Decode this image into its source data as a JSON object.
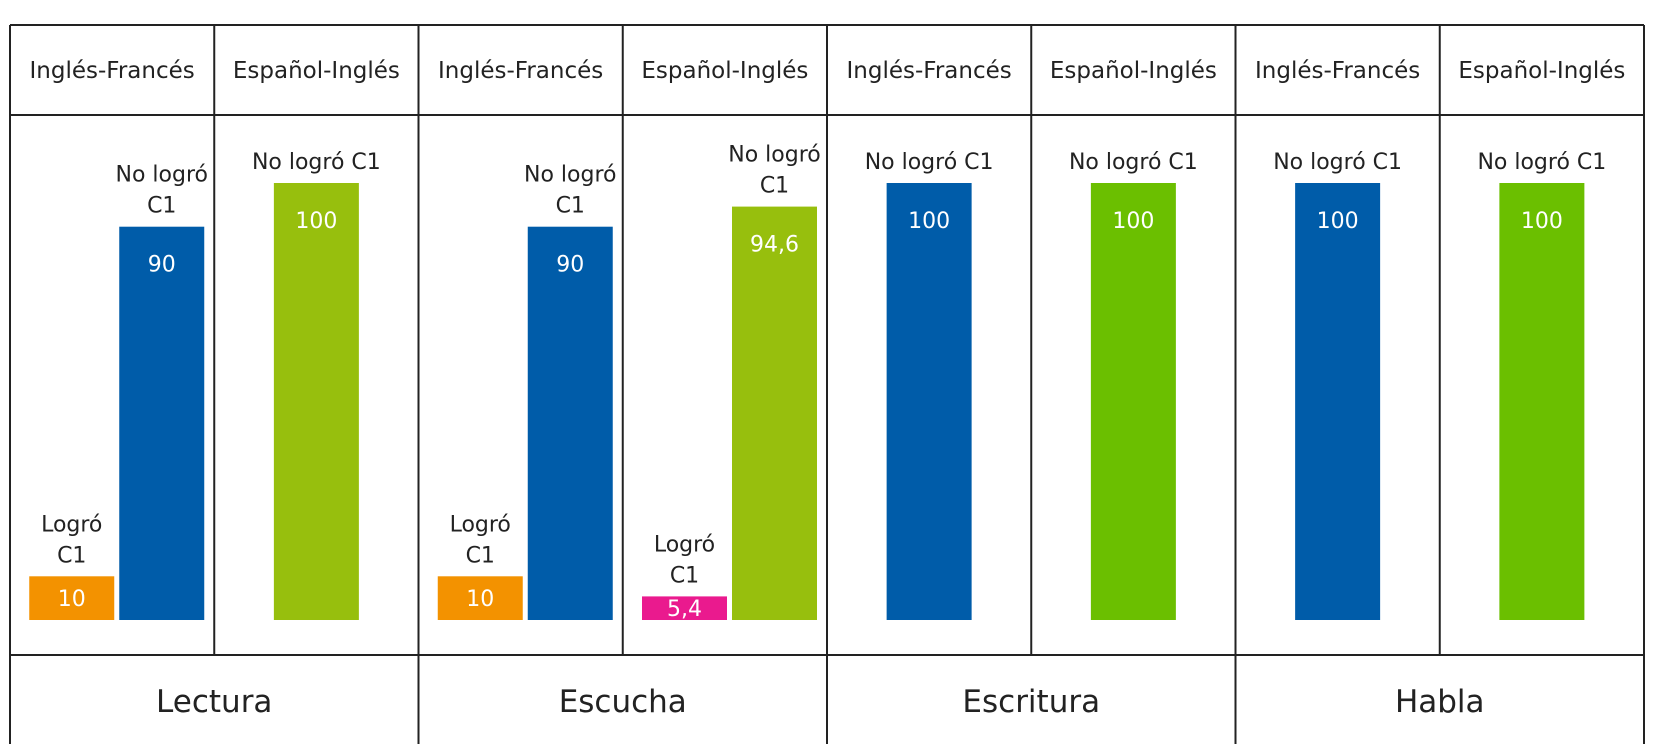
{
  "chart_data": {
    "type": "bar",
    "colors": {
      "Logró C1": "#f39200",
      "No logró C1": "#005ca9",
      "Logró C1 (Español-Inglés)": "#ea1a8e",
      "No logró C1 (Español-Inglés)": "#97bf0d",
      "No logró C1 (Español-Inglés, alt)": "#6bbf00"
    },
    "ylim": [
      0,
      100
    ],
    "panels": [
      {
        "skill": "Lectura",
        "groups": [
          {
            "name": "Inglés-Francés",
            "bars": [
              {
                "label": "Logró C1",
                "value_text": "10",
                "value": 10,
                "color": "#f39200"
              },
              {
                "label": "No logró C1",
                "value_text": "90",
                "value": 90,
                "color": "#005ca9"
              }
            ]
          },
          {
            "name": "Español-Inglés",
            "bars": [
              {
                "label": "No logró C1",
                "value_text": "100",
                "value": 100,
                "color": "#97bf0d"
              }
            ]
          }
        ]
      },
      {
        "skill": "Escucha",
        "groups": [
          {
            "name": "Inglés-Francés",
            "bars": [
              {
                "label": "Logró C1",
                "value_text": "10",
                "value": 10,
                "color": "#f39200"
              },
              {
                "label": "No logró C1",
                "value_text": "90",
                "value": 90,
                "color": "#005ca9"
              }
            ]
          },
          {
            "name": "Español-Inglés",
            "bars": [
              {
                "label": "Logró C1",
                "value_text": "5,4",
                "value": 5.4,
                "color": "#ea1a8e"
              },
              {
                "label": "No logró C1",
                "value_text": "94,6",
                "value": 94.6,
                "color": "#97bf0d"
              }
            ]
          }
        ]
      },
      {
        "skill": "Escritura",
        "groups": [
          {
            "name": "Inglés-Francés",
            "bars": [
              {
                "label": "No logró C1",
                "value_text": "100",
                "value": 100,
                "color": "#005ca9"
              }
            ]
          },
          {
            "name": "Español-Inglés",
            "bars": [
              {
                "label": "No logró C1",
                "value_text": "100",
                "value": 100,
                "color": "#6bbf00"
              }
            ]
          }
        ]
      },
      {
        "skill": "Habla",
        "groups": [
          {
            "name": "Inglés-Francés",
            "bars": [
              {
                "label": "No logró C1",
                "value_text": "100",
                "value": 100,
                "color": "#005ca9"
              }
            ]
          },
          {
            "name": "Español-Inglés",
            "bars": [
              {
                "label": "No logró C1",
                "value_text": "100",
                "value": 100,
                "color": "#6bbf00"
              }
            ]
          }
        ]
      }
    ]
  }
}
